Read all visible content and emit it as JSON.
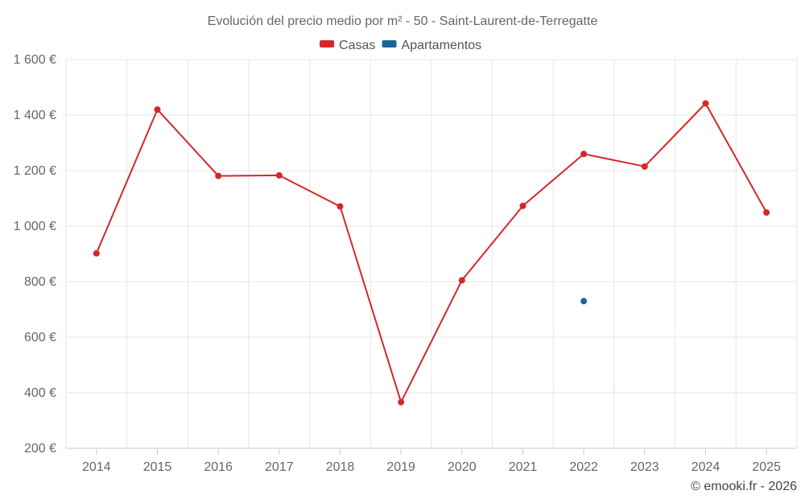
{
  "chart_data": {
    "type": "line",
    "title": "Evolución del precio medio por m² - 50 - Saint-Laurent-de-Terregatte",
    "categories": [
      "2014",
      "2015",
      "2016",
      "2017",
      "2018",
      "2019",
      "2020",
      "2021",
      "2022",
      "2023",
      "2024",
      "2025"
    ],
    "series": [
      {
        "name": "Casas",
        "color": "#d62728",
        "values": [
          902,
          1420,
          1181,
          1183,
          1071,
          366,
          805,
          1073,
          1260,
          1215,
          1442,
          1049
        ]
      },
      {
        "name": "Apartamentos",
        "color": "#1a6496",
        "values": [
          null,
          null,
          null,
          null,
          null,
          null,
          null,
          null,
          730,
          null,
          null,
          null
        ]
      }
    ],
    "ylim": [
      200,
      1600
    ],
    "yticks": [
      200,
      400,
      600,
      800,
      1000,
      1200,
      1400,
      1600
    ],
    "ytick_labels": [
      "200 €",
      "400 €",
      "600 €",
      "800 €",
      "1 000 €",
      "1 200 €",
      "1 400 €",
      "1 600 €"
    ],
    "legend": "top-center",
    "grid": true
  },
  "credit": "© emooki.fr - 2026"
}
